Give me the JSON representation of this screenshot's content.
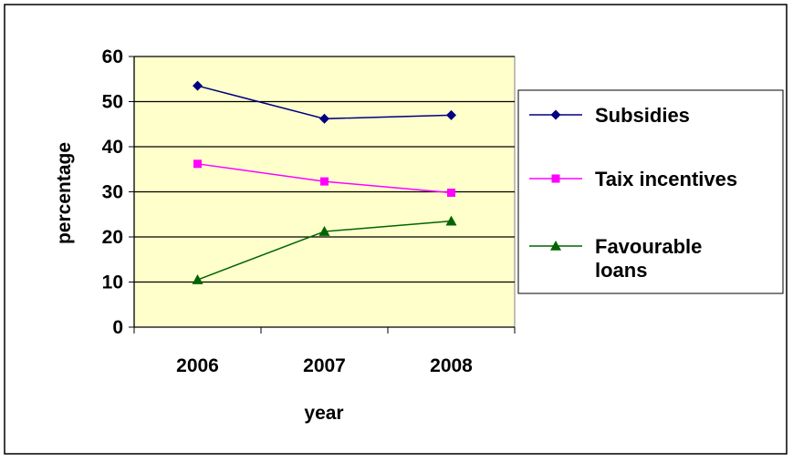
{
  "chart_data": {
    "type": "line",
    "title": "",
    "xlabel": "year",
    "ylabel": "percentage",
    "categories": [
      "2006",
      "2007",
      "2008"
    ],
    "ylim": [
      0,
      60
    ],
    "yticks": [
      0,
      10,
      20,
      30,
      40,
      50,
      60
    ],
    "grid": "horizontal",
    "plot_background": "#ffffcc",
    "legend_position": "right",
    "series": [
      {
        "name": "Subsidies",
        "values": [
          53.5,
          46.2,
          47.0
        ],
        "color": "#000080",
        "marker": "diamond"
      },
      {
        "name": "Taix incentives",
        "values": [
          36.2,
          32.3,
          29.8
        ],
        "color": "#ff00ff",
        "marker": "square"
      },
      {
        "name": "Favourable loans",
        "legend_lines": [
          "Favourable",
          "loans"
        ],
        "values": [
          10.5,
          21.2,
          23.5
        ],
        "color": "#006400",
        "marker": "triangle"
      }
    ]
  }
}
